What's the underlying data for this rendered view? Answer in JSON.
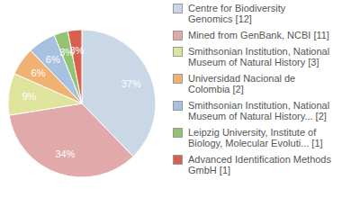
{
  "chart_data": {
    "type": "pie",
    "categories": [
      "Centre for Biodiversity Genomics [12]",
      "Mined from GenBank, NCBI [11]",
      "Smithsonian Institution, National Museum of Natural History [3]",
      "Universidad Nacional de Colombia [2]",
      "Smithsonian Institution, National Museum of Natural History... [2]",
      "Leipzig University, Institute of Biology, Molecular Evoluti... [1]",
      "Advanced Identification Methods GmbH [1]"
    ],
    "values": [
      37,
      34,
      9,
      6,
      6,
      3,
      3
    ],
    "value_labels": [
      "37%",
      "34%",
      "9%",
      "6%",
      "6%",
      "3%",
      "3%"
    ],
    "colors": [
      "#c9d7e7",
      "#e1a9a9",
      "#dfe49d",
      "#f0b273",
      "#a9c1e1",
      "#93c272",
      "#d9604f"
    ],
    "data_labels": true,
    "legend": "right"
  }
}
